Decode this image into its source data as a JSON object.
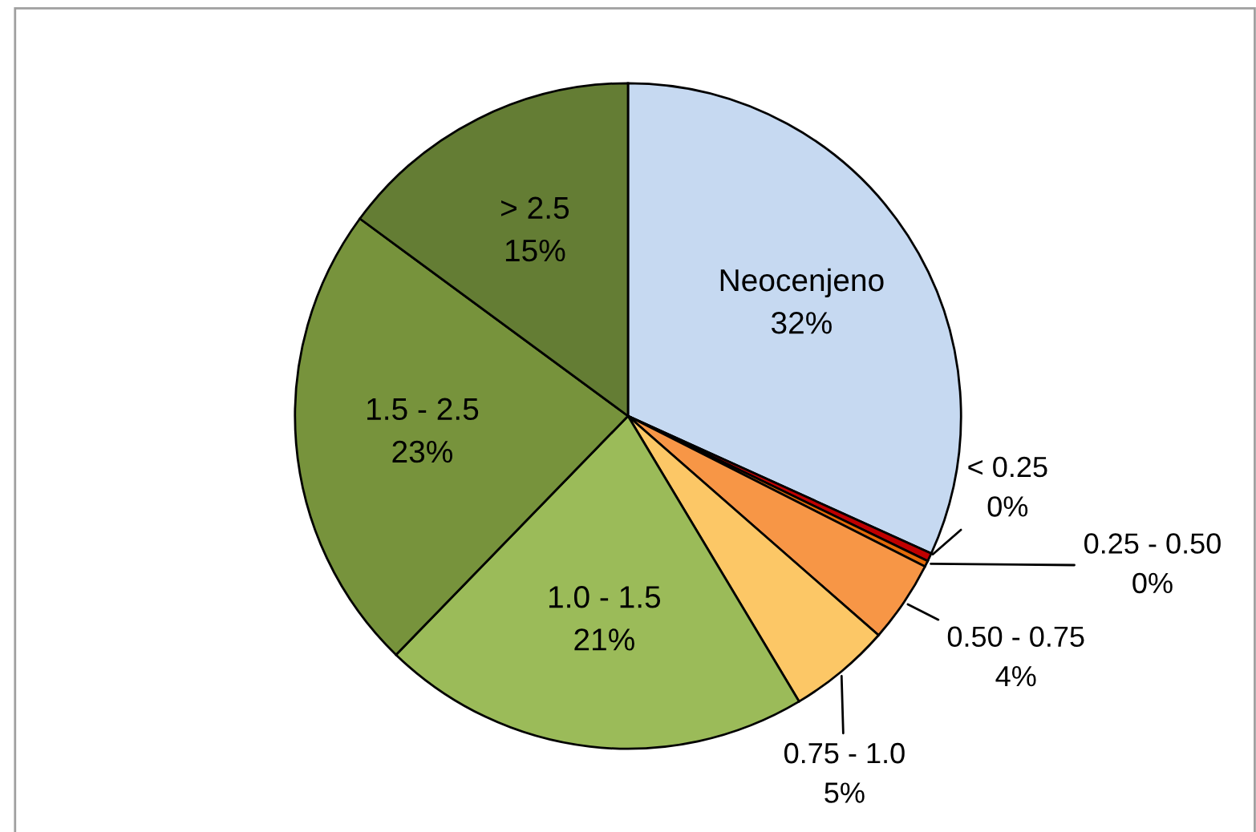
{
  "chart_data": {
    "type": "pie",
    "categories": [
      "Neocenjeno",
      "< 0.25",
      "0.25 - 0.50",
      "0.50 - 0.75",
      "0.75 - 1.0",
      "1.0 - 1.5",
      "1.5 - 2.5",
      "> 2.5"
    ],
    "values": [
      32,
      0.4,
      0.3,
      4,
      5,
      21,
      23,
      15
    ],
    "value_labels": [
      "32%",
      "0%",
      "0%",
      "4%",
      "5%",
      "21%",
      "23%",
      "15%"
    ],
    "colors": [
      "#c6d9f1",
      "#c00000",
      "#e46c0a",
      "#f79646",
      "#fcc766",
      "#9bbb59",
      "#77933c",
      "#647d34"
    ]
  }
}
